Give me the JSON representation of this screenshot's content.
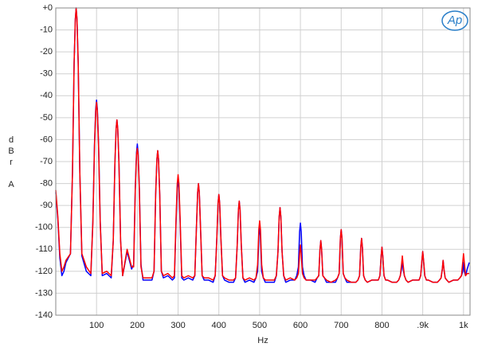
{
  "chart_data": {
    "type": "line",
    "xlabel": "Hz",
    "ylabel": [
      "d",
      "B",
      "r",
      "A"
    ],
    "logo": "Ap",
    "xlim": [
      0,
      1016
    ],
    "ylim": [
      -140,
      0
    ],
    "xticks": [
      100,
      200,
      300,
      400,
      500,
      600,
      700,
      800,
      {
        "value": 900,
        "label": ".9k"
      },
      {
        "value": 1000,
        "label": "1k"
      }
    ],
    "yticks": [
      {
        "value": 0,
        "label": "+0"
      },
      -10,
      -20,
      -30,
      -40,
      -50,
      -60,
      -70,
      -80,
      -90,
      -100,
      -110,
      -120,
      -130,
      -140
    ],
    "grid": true,
    "x": [
      0,
      5,
      10,
      15,
      20,
      25,
      36,
      41,
      45,
      48,
      50,
      52,
      55,
      59,
      64,
      75,
      86,
      91,
      95,
      98,
      100,
      102,
      105,
      109,
      114,
      125,
      136,
      141,
      145,
      148,
      150,
      152,
      155,
      159,
      164,
      175,
      186,
      191,
      195,
      198,
      200,
      202,
      205,
      209,
      214,
      225,
      236,
      241,
      245,
      248,
      250,
      252,
      255,
      259,
      264,
      275,
      286,
      291,
      295,
      298,
      300,
      302,
      305,
      309,
      314,
      325,
      336,
      341,
      345,
      348,
      350,
      352,
      355,
      359,
      364,
      375,
      386,
      391,
      395,
      398,
      400,
      402,
      405,
      409,
      414,
      425,
      436,
      441,
      445,
      448,
      450,
      452,
      455,
      459,
      464,
      475,
      486,
      491,
      495,
      498,
      500,
      502,
      505,
      509,
      514,
      525,
      536,
      541,
      545,
      548,
      550,
      552,
      555,
      559,
      564,
      575,
      586,
      591,
      595,
      598,
      600,
      602,
      605,
      609,
      614,
      625,
      636,
      641,
      645,
      648,
      650,
      652,
      655,
      659,
      664,
      675,
      686,
      691,
      695,
      698,
      700,
      702,
      705,
      709,
      714,
      725,
      736,
      741,
      745,
      748,
      750,
      752,
      755,
      759,
      764,
      775,
      786,
      791,
      795,
      798,
      800,
      802,
      805,
      809,
      814,
      825,
      836,
      841,
      845,
      848,
      850,
      852,
      855,
      859,
      864,
      875,
      886,
      891,
      895,
      898,
      900,
      902,
      905,
      909,
      914,
      925,
      936,
      941,
      945,
      948,
      950,
      952,
      955,
      959,
      964,
      975,
      986,
      991,
      995,
      998,
      1000,
      1002,
      1005,
      1009,
      1014
    ],
    "series": [
      {
        "color": "#0000ff",
        "values": [
          -84,
          -96,
          -114,
          -122,
          -120,
          -116,
          -112,
          -75,
          -25,
          -5,
          0,
          -5,
          -25,
          -75,
          -113,
          -120,
          -122,
          -97,
          -62,
          -46,
          -42,
          -46,
          -62,
          -97,
          -122,
          -121,
          -123,
          -106,
          -71,
          -55,
          -51,
          -55,
          -71,
          -106,
          -122,
          -111,
          -119,
          -117,
          -82,
          -66,
          -62,
          -66,
          -82,
          -117,
          -124,
          -124,
          -124,
          -120,
          -85,
          -69,
          -65,
          -69,
          -85,
          -120,
          -123,
          -122,
          -124,
          -123,
          -98,
          -82,
          -78,
          -82,
          -98,
          -123,
          -124,
          -123,
          -124,
          -122,
          -100,
          -84,
          -80,
          -84,
          -100,
          -122,
          -124,
          -124,
          -125,
          -122,
          -105,
          -89,
          -85,
          -89,
          -105,
          -122,
          -124,
          -125,
          -125,
          -123,
          -108,
          -92,
          -88,
          -92,
          -108,
          -123,
          -125,
          -124,
          -125,
          -123,
          -120,
          -104,
          -100,
          -104,
          -120,
          -123,
          -125,
          -125,
          -125,
          -122,
          -111,
          -95,
          -91,
          -95,
          -111,
          -122,
          -125,
          -124,
          -124,
          -122,
          -118,
          -102,
          -98,
          -102,
          -118,
          -122,
          -124,
          -124,
          -125,
          -123,
          -122,
          -110,
          -106,
          -110,
          -122,
          -123,
          -125,
          -125,
          -125,
          -123,
          -121,
          -105,
          -101,
          -105,
          -121,
          -123,
          -125,
          -125,
          -125,
          -124,
          -122,
          -109,
          -105,
          -109,
          -122,
          -124,
          -125,
          -124,
          -124,
          -124,
          -122,
          -113,
          -109,
          -113,
          -122,
          -124,
          -124,
          -125,
          -125,
          -124,
          -122,
          -119,
          -115,
          -119,
          -122,
          -124,
          -125,
          -124,
          -124,
          -124,
          -122,
          -115,
          -111,
          -115,
          -122,
          -124,
          -124,
          -125,
          -125,
          -124,
          -123,
          -119,
          -115,
          -119,
          -123,
          -124,
          -125,
          -124,
          -124,
          -123,
          -122,
          -120,
          -116,
          -120,
          -122,
          -119,
          -116
        ]
      },
      {
        "color": "#ff0000",
        "values": [
          -83,
          -95,
          -112,
          -120,
          -118,
          -115,
          -112,
          -75,
          -25,
          -5,
          0,
          -5,
          -25,
          -75,
          -112,
          -118,
          -121,
          -98,
          -63,
          -47,
          -43,
          -47,
          -63,
          -98,
          -121,
          -120,
          -122,
          -106,
          -71,
          -55,
          -51,
          -55,
          -71,
          -106,
          -122,
          -110,
          -118,
          -118,
          -83,
          -67,
          -64,
          -67,
          -83,
          -118,
          -123,
          -123,
          -123,
          -120,
          -85,
          -69,
          -65,
          -69,
          -85,
          -120,
          -122,
          -121,
          -123,
          -122,
          -96,
          -80,
          -76,
          -80,
          -96,
          -122,
          -123,
          -122,
          -123,
          -122,
          -100,
          -84,
          -80,
          -84,
          -100,
          -122,
          -123,
          -123,
          -124,
          -122,
          -105,
          -89,
          -85,
          -89,
          -105,
          -122,
          -123,
          -124,
          -124,
          -123,
          -108,
          -92,
          -88,
          -92,
          -108,
          -123,
          -124,
          -123,
          -124,
          -123,
          -117,
          -101,
          -97,
          -101,
          -117,
          -123,
          -124,
          -124,
          -124,
          -122,
          -111,
          -95,
          -91,
          -95,
          -111,
          -122,
          -124,
          -123,
          -124,
          -123,
          -121,
          -112,
          -108,
          -112,
          -121,
          -123,
          -124,
          -124,
          -124,
          -123,
          -122,
          -110,
          -106,
          -110,
          -122,
          -123,
          -124,
          -125,
          -124,
          -123,
          -121,
          -105,
          -101,
          -105,
          -121,
          -123,
          -124,
          -125,
          -125,
          -124,
          -122,
          -109,
          -105,
          -109,
          -122,
          -124,
          -125,
          -124,
          -124,
          -124,
          -122,
          -113,
          -109,
          -113,
          -122,
          -124,
          -124,
          -125,
          -125,
          -124,
          -122,
          -117,
          -113,
          -117,
          -122,
          -124,
          -125,
          -124,
          -124,
          -124,
          -122,
          -115,
          -111,
          -115,
          -122,
          -124,
          -124,
          -125,
          -125,
          -124,
          -123,
          -119,
          -115,
          -119,
          -123,
          -124,
          -125,
          -124,
          -124,
          -123,
          -122,
          -116,
          -112,
          -116,
          -122,
          -121,
          -121
        ]
      }
    ]
  }
}
